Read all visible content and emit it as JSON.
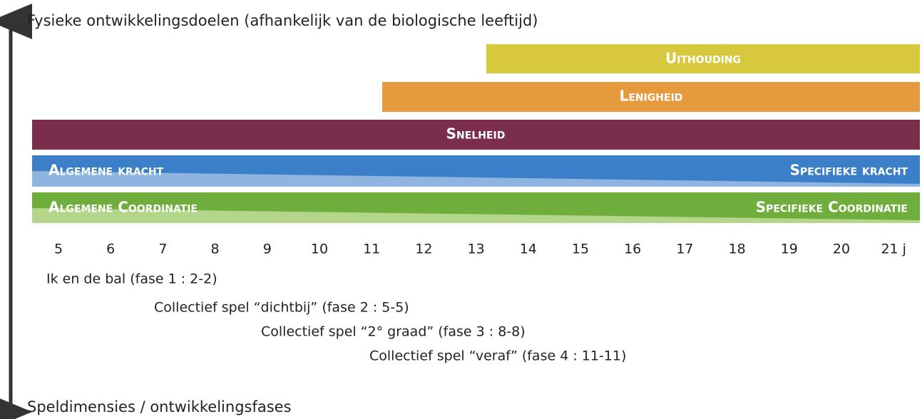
{
  "axis": {
    "top_label": "Fysieke ontwikkelingsdoelen (afhankelijk van de biologische leeftijd)",
    "bottom_label": "Speldimensies / ontwikkelingsfases"
  },
  "bars": {
    "uithouding": "Uithouding",
    "lenigheid": "Lenigheid",
    "snelheid": "Snelheid",
    "kracht": {
      "left": "Algemene kracht",
      "right": "Specifieke kracht"
    },
    "coordinatie": {
      "left": "Algemene Coordinatie",
      "right": "Specifieke Coordinatie"
    }
  },
  "ages": [
    "5",
    "6",
    "7",
    "8",
    "9",
    "10",
    "11",
    "12",
    "13",
    "14",
    "15",
    "16",
    "17",
    "18",
    "19",
    "20",
    "21 j"
  ],
  "phases": [
    "Ik en de bal (fase 1 : 2-2)",
    "Collectief spel “dichtbij” (fase 2 : 5-5)",
    "Collectief spel “2° graad” (fase 3 : 8-8)",
    "Collectief spel “veraf” (fase 4 : 11-11)"
  ]
}
